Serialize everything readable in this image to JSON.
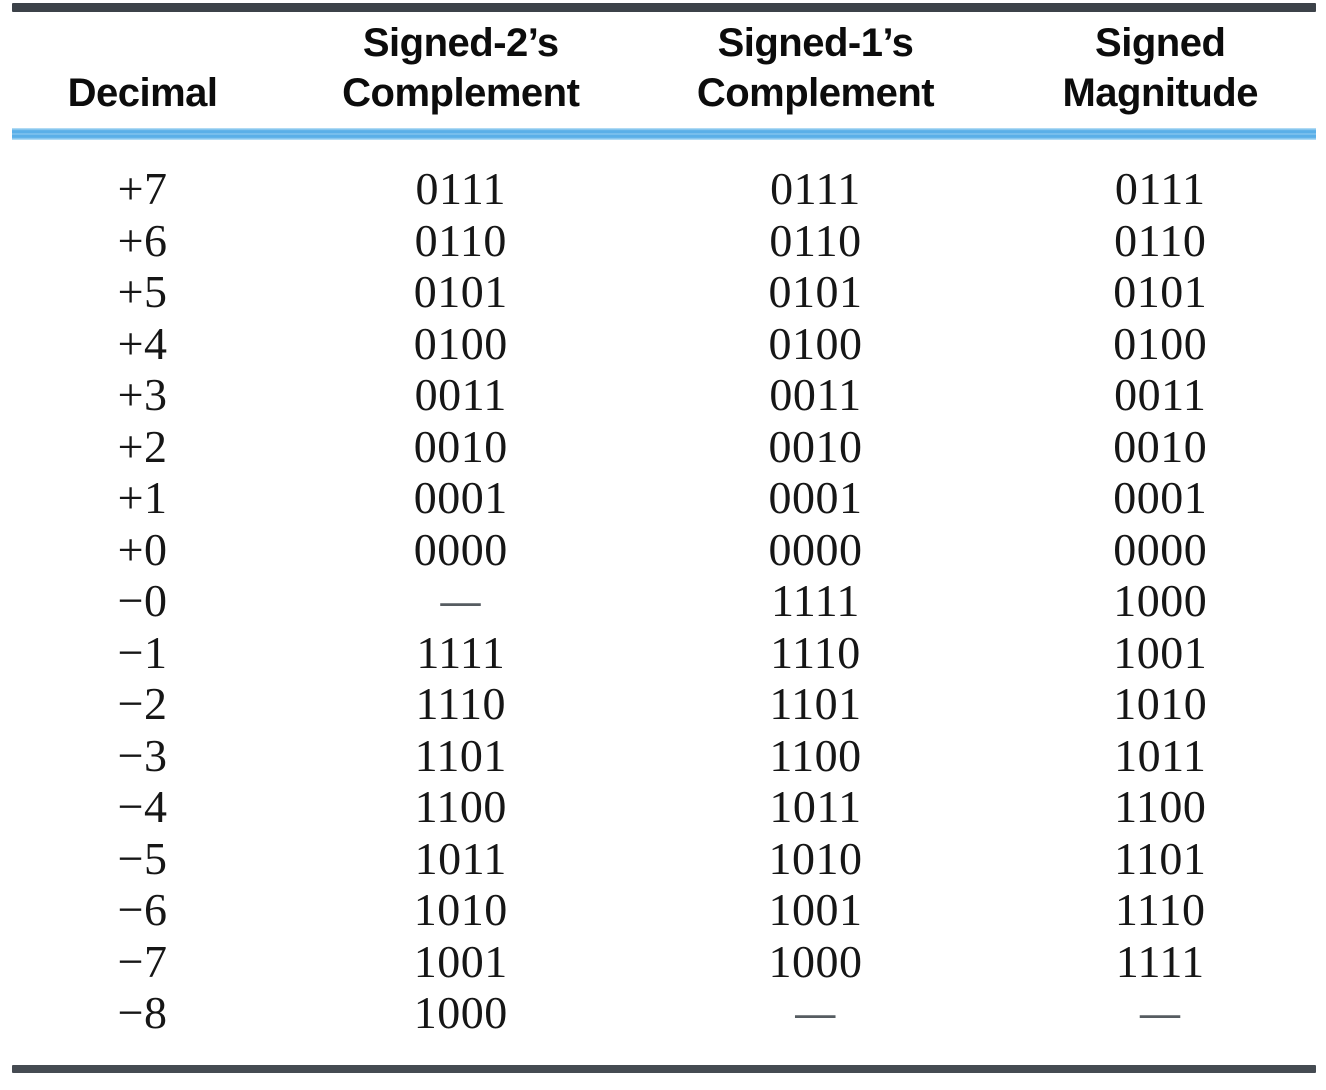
{
  "table": {
    "empty_marker": "—",
    "headers": [
      {
        "lines": [
          "Decimal"
        ]
      },
      {
        "lines": [
          "Signed-2’s",
          "Complement"
        ]
      },
      {
        "lines": [
          "Signed-1’s",
          "Complement"
        ]
      },
      {
        "lines": [
          "Signed",
          "Magnitude"
        ]
      }
    ],
    "rows": [
      [
        "+7",
        "0111",
        "0111",
        "0111"
      ],
      [
        "+6",
        "0110",
        "0110",
        "0110"
      ],
      [
        "+5",
        "0101",
        "0101",
        "0101"
      ],
      [
        "+4",
        "0100",
        "0100",
        "0100"
      ],
      [
        "+3",
        "0011",
        "0011",
        "0011"
      ],
      [
        "+2",
        "0010",
        "0010",
        "0010"
      ],
      [
        "+1",
        "0001",
        "0001",
        "0001"
      ],
      [
        "+0",
        "0000",
        "0000",
        "0000"
      ],
      [
        "−0",
        "—",
        "1111",
        "1000"
      ],
      [
        "−1",
        "1111",
        "1110",
        "1001"
      ],
      [
        "−2",
        "1110",
        "1101",
        "1010"
      ],
      [
        "−3",
        "1101",
        "1100",
        "1011"
      ],
      [
        "−4",
        "1100",
        "1011",
        "1100"
      ],
      [
        "−5",
        "1011",
        "1010",
        "1101"
      ],
      [
        "−6",
        "1010",
        "1001",
        "1110"
      ],
      [
        "−7",
        "1001",
        "1000",
        "1111"
      ],
      [
        "−8",
        "1000",
        "—",
        "—"
      ]
    ]
  },
  "colors": {
    "dark_rule": "#3c4249",
    "blue_rule": "#5aafe8",
    "text": "#161616",
    "dash": "#565c61",
    "background": "#ffffff"
  }
}
